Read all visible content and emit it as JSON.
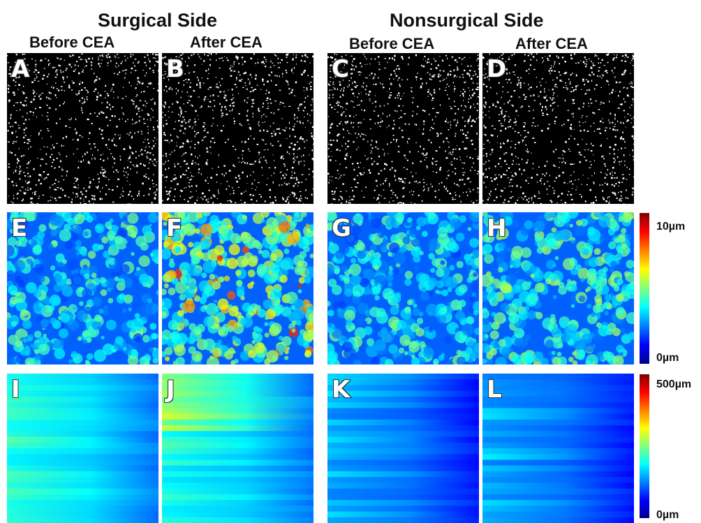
{
  "groups": [
    {
      "title": "Surgical Side"
    },
    {
      "title": "Nonsurgical Side"
    }
  ],
  "columns": [
    {
      "title": "Before CEA"
    },
    {
      "title": "After CEA"
    },
    {
      "title": "Before CEA"
    },
    {
      "title": "After CEA"
    }
  ],
  "rows": [
    {
      "panels": [
        "A",
        "B",
        "C",
        "D"
      ],
      "kind": "binary"
    },
    {
      "panels": [
        "E",
        "F",
        "G",
        "H"
      ],
      "kind": "thickness"
    },
    {
      "panels": [
        "I",
        "J",
        "K",
        "L"
      ],
      "kind": "depth"
    }
  ],
  "colorbars": [
    {
      "max_label": "10µm",
      "min_label": "0µm"
    },
    {
      "max_label": "500µm",
      "min_label": "0µm"
    }
  ],
  "colormap": [
    "#00008f",
    "#0000ff",
    "#0080ff",
    "#00ffff",
    "#80ff80",
    "#ffff00",
    "#ff8000",
    "#ff0000",
    "#800000"
  ]
}
